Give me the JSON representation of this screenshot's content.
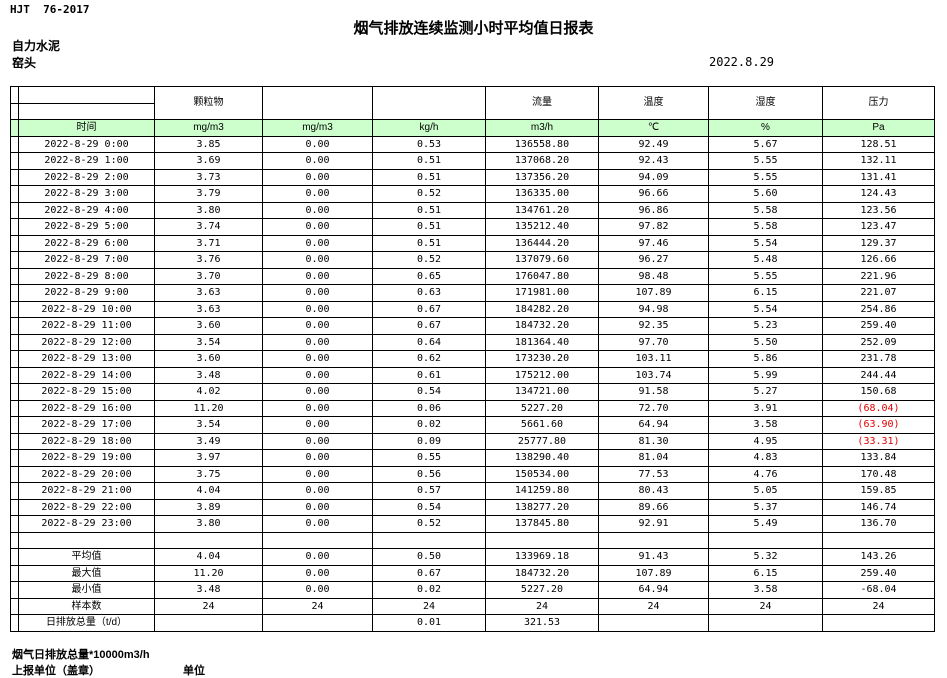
{
  "page": {
    "standard": "HJT  76-2017",
    "title": "烟气排放连续监测小时平均值日报表",
    "company": "自力水泥",
    "location": "窑头",
    "date": "2022.8.29"
  },
  "table": {
    "group_headers": [
      "",
      "颗粒物",
      "",
      "",
      "流量",
      "温度",
      "湿度",
      "压力"
    ],
    "unit_row": [
      "时间",
      "mg/m3",
      "mg/m3",
      "kg/h",
      "m3/h",
      "℃",
      "%",
      "Pa"
    ],
    "rows": [
      {
        "time": "2022-8-29 0:00",
        "values": [
          "3.85",
          "0.00",
          "0.53",
          "136558.80",
          "92.49",
          "5.67",
          "128.51"
        ]
      },
      {
        "time": "2022-8-29 1:00",
        "values": [
          "3.69",
          "0.00",
          "0.51",
          "137068.20",
          "92.43",
          "5.55",
          "132.11"
        ]
      },
      {
        "time": "2022-8-29 2:00",
        "values": [
          "3.73",
          "0.00",
          "0.51",
          "137356.20",
          "94.09",
          "5.55",
          "131.41"
        ]
      },
      {
        "time": "2022-8-29 3:00",
        "values": [
          "3.79",
          "0.00",
          "0.52",
          "136335.00",
          "96.66",
          "5.60",
          "124.43"
        ]
      },
      {
        "time": "2022-8-29 4:00",
        "values": [
          "3.80",
          "0.00",
          "0.51",
          "134761.20",
          "96.86",
          "5.58",
          "123.56"
        ]
      },
      {
        "time": "2022-8-29 5:00",
        "values": [
          "3.74",
          "0.00",
          "0.51",
          "135212.40",
          "97.82",
          "5.58",
          "123.47"
        ]
      },
      {
        "time": "2022-8-29 6:00",
        "values": [
          "3.71",
          "0.00",
          "0.51",
          "136444.20",
          "97.46",
          "5.54",
          "129.37"
        ]
      },
      {
        "time": "2022-8-29 7:00",
        "values": [
          "3.76",
          "0.00",
          "0.52",
          "137079.60",
          "96.27",
          "5.48",
          "126.66"
        ]
      },
      {
        "time": "2022-8-29 8:00",
        "values": [
          "3.70",
          "0.00",
          "0.65",
          "176047.80",
          "98.48",
          "5.55",
          "221.96"
        ]
      },
      {
        "time": "2022-8-29 9:00",
        "values": [
          "3.63",
          "0.00",
          "0.63",
          "171981.00",
          "107.89",
          "6.15",
          "221.07"
        ]
      },
      {
        "time": "2022-8-29 10:00",
        "values": [
          "3.63",
          "0.00",
          "0.67",
          "184282.20",
          "94.98",
          "5.54",
          "254.86"
        ]
      },
      {
        "time": "2022-8-29 11:00",
        "values": [
          "3.60",
          "0.00",
          "0.67",
          "184732.20",
          "92.35",
          "5.23",
          "259.40"
        ]
      },
      {
        "time": "2022-8-29 12:00",
        "values": [
          "3.54",
          "0.00",
          "0.64",
          "181364.40",
          "97.70",
          "5.50",
          "252.09"
        ]
      },
      {
        "time": "2022-8-29 13:00",
        "values": [
          "3.60",
          "0.00",
          "0.62",
          "173230.20",
          "103.11",
          "5.86",
          "231.78"
        ]
      },
      {
        "time": "2022-8-29 14:00",
        "values": [
          "3.48",
          "0.00",
          "0.61",
          "175212.00",
          "103.74",
          "5.99",
          "244.44"
        ]
      },
      {
        "time": "2022-8-29 15:00",
        "values": [
          "4.02",
          "0.00",
          "0.54",
          "134721.00",
          "91.58",
          "5.27",
          "150.68"
        ]
      },
      {
        "time": "2022-8-29 16:00",
        "values": [
          "11.20",
          "0.00",
          "0.06",
          "5227.20",
          "72.70",
          "3.91",
          "(68.04)"
        ]
      },
      {
        "time": "2022-8-29 17:00",
        "values": [
          "3.54",
          "0.00",
          "0.02",
          "5661.60",
          "64.94",
          "3.58",
          "(63.90)"
        ]
      },
      {
        "time": "2022-8-29 18:00",
        "values": [
          "3.49",
          "0.00",
          "0.09",
          "25777.80",
          "81.30",
          "4.95",
          "(33.31)"
        ]
      },
      {
        "time": "2022-8-29 19:00",
        "values": [
          "3.97",
          "0.00",
          "0.55",
          "138290.40",
          "81.04",
          "4.83",
          "133.84"
        ]
      },
      {
        "time": "2022-8-29 20:00",
        "values": [
          "3.75",
          "0.00",
          "0.56",
          "150534.00",
          "77.53",
          "4.76",
          "170.48"
        ]
      },
      {
        "time": "2022-8-29 21:00",
        "values": [
          "4.04",
          "0.00",
          "0.57",
          "141259.80",
          "80.43",
          "5.05",
          "159.85"
        ]
      },
      {
        "time": "2022-8-29 22:00",
        "values": [
          "3.89",
          "0.00",
          "0.54",
          "138277.20",
          "89.66",
          "5.37",
          "146.74"
        ]
      },
      {
        "time": "2022-8-29 23:00",
        "values": [
          "3.80",
          "0.00",
          "0.52",
          "137845.80",
          "92.91",
          "5.49",
          "136.70"
        ]
      }
    ],
    "summary": [
      {
        "label": "平均值",
        "values": [
          "4.04",
          "0.00",
          "0.50",
          "133969.18",
          "91.43",
          "5.32",
          "143.26"
        ]
      },
      {
        "label": "最大值",
        "values": [
          "11.20",
          "0.00",
          "0.67",
          "184732.20",
          "107.89",
          "6.15",
          "259.40"
        ]
      },
      {
        "label": "最小值",
        "values": [
          "3.48",
          "0.00",
          "0.02",
          "5227.20",
          "64.94",
          "3.58",
          "-68.04"
        ]
      },
      {
        "label": "样本数",
        "values": [
          "24",
          "24",
          "24",
          "24",
          "24",
          "24",
          "24"
        ]
      },
      {
        "label": "日排放总量（t/d）",
        "values": [
          "",
          "",
          "0.01",
          "321.53",
          "",
          "",
          ""
        ]
      }
    ]
  },
  "footer": {
    "note": "烟气日排放总量*10000m3/h",
    "report_unit": "上报单位（盖章）",
    "unit_label": "单位"
  },
  "colors": {
    "header_green": "#CCFFCC",
    "negative_red": "#e00000"
  }
}
